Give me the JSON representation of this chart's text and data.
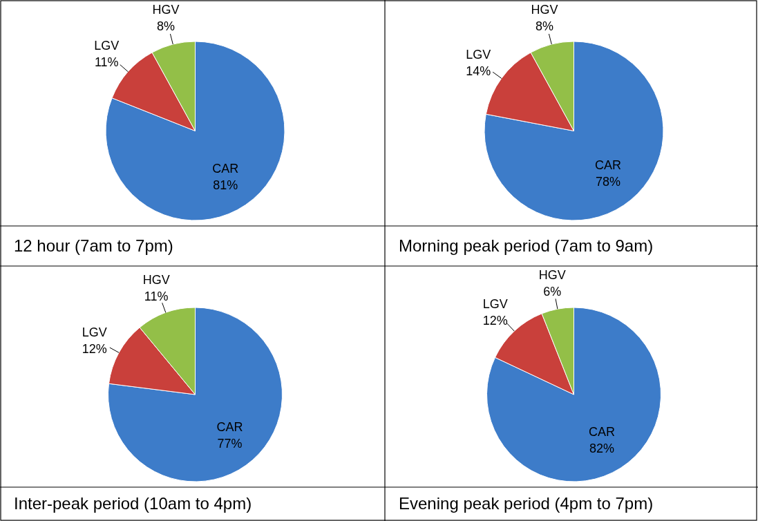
{
  "chart_data": [
    {
      "type": "pie",
      "title": "12 hour (7am to 7pm)",
      "categories": [
        "CAR",
        "LGV",
        "HGV"
      ],
      "values": [
        81,
        11,
        8
      ],
      "value_labels": [
        "81%",
        "11%",
        "8%"
      ],
      "colors": [
        "#3d7cc9",
        "#c9403b",
        "#93bf48"
      ]
    },
    {
      "type": "pie",
      "title": "Morning peak period (7am to 9am)",
      "categories": [
        "CAR",
        "LGV",
        "HGV"
      ],
      "values": [
        78,
        14,
        8
      ],
      "value_labels": [
        "78%",
        "14%",
        "8%"
      ],
      "colors": [
        "#3d7cc9",
        "#c9403b",
        "#93bf48"
      ]
    },
    {
      "type": "pie",
      "title": "Inter-peak period (10am to 4pm)",
      "categories": [
        "CAR",
        "LGV",
        "HGV"
      ],
      "values": [
        77,
        12,
        11
      ],
      "value_labels": [
        "77%",
        "12%",
        "11%"
      ],
      "colors": [
        "#3d7cc9",
        "#c9403b",
        "#93bf48"
      ]
    },
    {
      "type": "pie",
      "title": "Evening peak period (4pm to 7pm)",
      "categories": [
        "CAR",
        "LGV",
        "HGV"
      ],
      "values": [
        82,
        12,
        6
      ],
      "value_labels": [
        "82%",
        "12%",
        "6%"
      ],
      "colors": [
        "#3d7cc9",
        "#c9403b",
        "#93bf48"
      ]
    }
  ]
}
